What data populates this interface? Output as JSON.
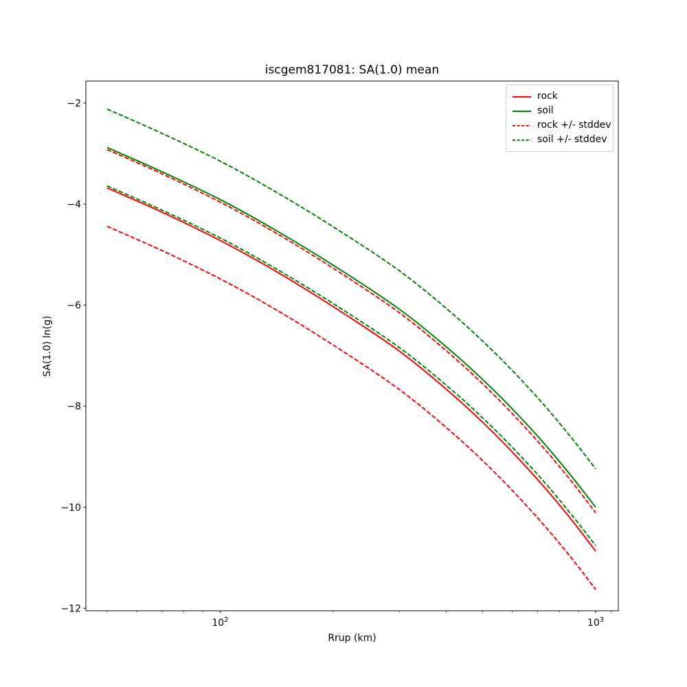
{
  "chart_data": {
    "type": "line",
    "title": "iscgem817081: SA(1.0) mean",
    "xlabel": "Rrup (km)",
    "ylabel": "SA(1.0) ln(g)",
    "x_scale": "log",
    "grid": false,
    "xlim": [
      43.9,
      1149
    ],
    "ylim": [
      -12.05,
      -1.565
    ],
    "x_major_ticks": [
      {
        "value": 100,
        "base": "10",
        "exponent": "2"
      },
      {
        "value": 1000,
        "base": "10",
        "exponent": "3"
      }
    ],
    "x_minor_ticks": [
      50,
      60,
      70,
      80,
      90,
      200,
      300,
      400,
      500,
      600,
      700,
      800,
      900,
      1100
    ],
    "y_ticks": [
      -2,
      -4,
      -6,
      -8,
      -10,
      -12
    ],
    "x": [
      50,
      70,
      100,
      140,
      200,
      300,
      420,
      550,
      700,
      850,
      1000
    ],
    "series": [
      {
        "name": "rock",
        "color": "#ff0000",
        "dash": "solid",
        "values": [
          -3.68,
          -4.16,
          -4.72,
          -5.32,
          -6.03,
          -6.91,
          -7.8,
          -8.62,
          -9.45,
          -10.19,
          -10.87
        ]
      },
      {
        "name": "soil",
        "color": "#008000",
        "dash": "solid",
        "values": [
          -2.88,
          -3.36,
          -3.91,
          -4.51,
          -5.21,
          -6.08,
          -6.96,
          -7.77,
          -8.59,
          -9.33,
          -10.0
        ]
      },
      {
        "name": "rock + stddev",
        "color": "#ff0000",
        "dash": "dashed",
        "values": [
          -2.92,
          -3.4,
          -3.96,
          -4.56,
          -5.27,
          -6.15,
          -7.04,
          -7.86,
          -8.69,
          -9.43,
          -10.11
        ]
      },
      {
        "name": "rock - stddev",
        "color": "#ff0000",
        "dash": "dashed",
        "values": [
          -4.44,
          -4.92,
          -5.48,
          -6.08,
          -6.79,
          -7.67,
          -8.56,
          -9.38,
          -10.21,
          -10.95,
          -11.63
        ]
      },
      {
        "name": "soil + stddev",
        "color": "#008000",
        "dash": "dashed",
        "values": [
          -2.12,
          -2.6,
          -3.15,
          -3.75,
          -4.45,
          -5.32,
          -6.2,
          -7.01,
          -7.83,
          -8.57,
          -9.24
        ]
      },
      {
        "name": "soil - stddev",
        "color": "#008000",
        "dash": "dashed",
        "values": [
          -3.64,
          -4.12,
          -4.67,
          -5.27,
          -5.97,
          -6.84,
          -7.72,
          -8.53,
          -9.35,
          -10.09,
          -10.76
        ]
      }
    ],
    "stddev": 0.76,
    "legend": {
      "position": "upper right",
      "entries": [
        {
          "label": "rock",
          "color": "#ff0000",
          "dash": "solid"
        },
        {
          "label": "soil",
          "color": "#008000",
          "dash": "solid"
        },
        {
          "label": "rock +/- stddev",
          "color": "#ff0000",
          "dash": "dashed"
        },
        {
          "label": "soil +/- stddev",
          "color": "#008000",
          "dash": "dashed"
        }
      ]
    },
    "colors": {
      "rock": "#ff0000",
      "soil": "#008000",
      "spine": "#000000",
      "legend_frame": "#cccccc"
    }
  }
}
